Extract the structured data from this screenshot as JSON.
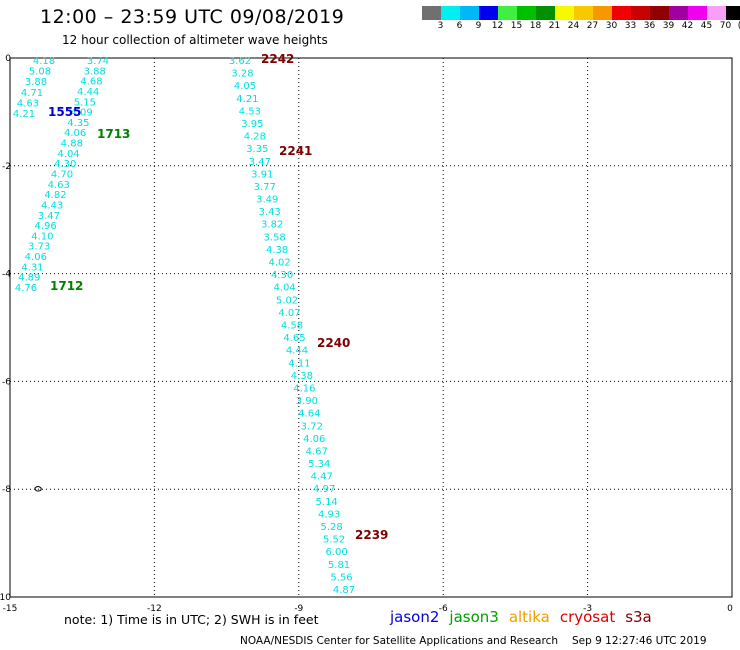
{
  "header": {
    "title": "12:00 – 23:59 UTC 09/08/2019",
    "subtitle": "12 hour collection of altimeter wave heights"
  },
  "color_scale": {
    "colors": [
      "#707070",
      "#00f0f0",
      "#00b8f8",
      "#0000f0",
      "#40f040",
      "#00c000",
      "#009000",
      "#f8f800",
      "#f8c800",
      "#f89800",
      "#f00000",
      "#c80000",
      "#900000",
      "#a000a0",
      "#f000f0",
      "#f8a0f8",
      "#000000"
    ],
    "labels": [
      "3",
      "6",
      "9",
      "12",
      "15",
      "18",
      "21",
      "24",
      "27",
      "30",
      "33",
      "36",
      "39",
      "42",
      "45",
      "70",
      "(ft)"
    ]
  },
  "map": {
    "x_ticks": [
      "-15",
      "-12",
      "-9",
      "-6",
      "-3",
      "0"
    ],
    "y_ticks": [
      "0",
      "-2",
      "-4",
      "-6",
      "-8",
      "-10"
    ],
    "swh_color": "#00e0e0",
    "tracks": [
      {
        "values": [
          "4.18",
          "5.08",
          "3.88",
          "4.71",
          "4.63",
          "4.21"
        ]
      },
      {
        "values": [
          "3.74",
          "3.88",
          "4.68",
          "4.44",
          "5.15",
          "4.09",
          "4.35",
          "4.06",
          "4.88",
          "4.04",
          "4.30",
          "4.70",
          "4.63",
          "4.82",
          "4.43",
          "3.47",
          "4.96",
          "4.10",
          "3.73",
          "4.06",
          "4.31",
          "4.89",
          "4.76"
        ]
      },
      {
        "values": [
          "3.62",
          "3.28",
          "4.05",
          "4.21",
          "4.53",
          "3.95",
          "4.28",
          "3.35",
          "3.47",
          "3.91",
          "3.77",
          "3.49",
          "3.43",
          "3.82",
          "3.58",
          "4.38",
          "4.02",
          "4.30",
          "4.04",
          "5.02",
          "4.07",
          "4.58",
          "4.65",
          "4.44",
          "4.11",
          "4.38",
          "4.16",
          "3.90",
          "4.64",
          "3.72",
          "4.06",
          "4.67",
          "5.34",
          "4.47",
          "4.97",
          "5.14",
          "4.93",
          "5.28",
          "5.52",
          "6.00",
          "5.81",
          "5.56",
          "4.87"
        ]
      }
    ],
    "time_labels": [
      {
        "text": "1555",
        "color": "#0000d0"
      },
      {
        "text": "1713",
        "color": "#008000"
      },
      {
        "text": "1712",
        "color": "#008000"
      },
      {
        "text": "2242",
        "color": "#800000"
      },
      {
        "text": "2241",
        "color": "#800000"
      },
      {
        "text": "2240",
        "color": "#800000"
      },
      {
        "text": "2239",
        "color": "#800000"
      }
    ]
  },
  "note": "note: 1) Time is in UTC; 2) SWH is in feet",
  "legend": [
    {
      "name": "jason2",
      "color": "#0000e0"
    },
    {
      "name": "jason3",
      "color": "#00a000"
    },
    {
      "name": "altika",
      "color": "#f0a000"
    },
    {
      "name": "cryosat",
      "color": "#e00000"
    },
    {
      "name": "s3a",
      "color": "#800000"
    }
  ],
  "footer": {
    "credit": "NOAA/NESDIS Center for Satellite Applications and Research",
    "timestamp": "Sep  9 12:27:46 UTC 2019"
  }
}
